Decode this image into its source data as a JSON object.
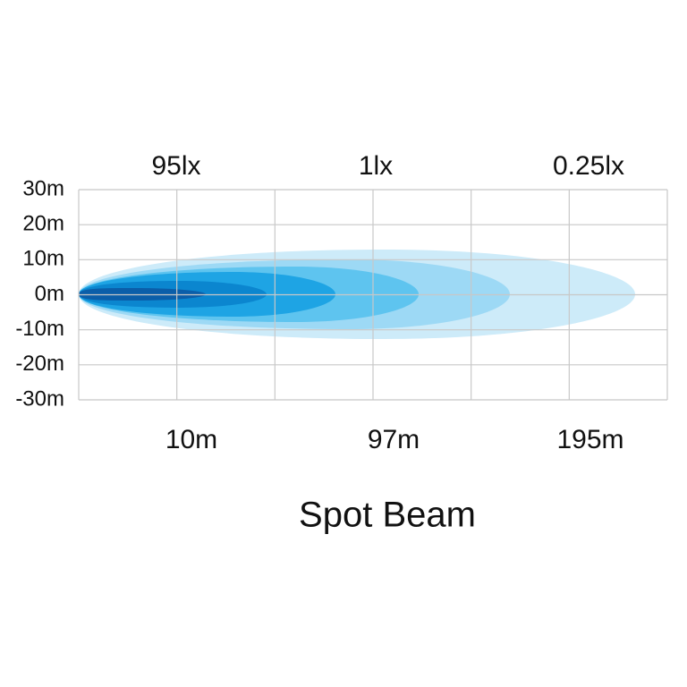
{
  "y_labels": [
    "30m",
    "20m",
    "10m",
    "0m",
    "-10m",
    "-20m",
    "-30m"
  ],
  "lux_labels": [
    "95lx",
    "1lx",
    "0.25lx"
  ],
  "distance_labels": [
    "10m",
    "97m",
    "195m"
  ],
  "title": "Spot Beam"
}
